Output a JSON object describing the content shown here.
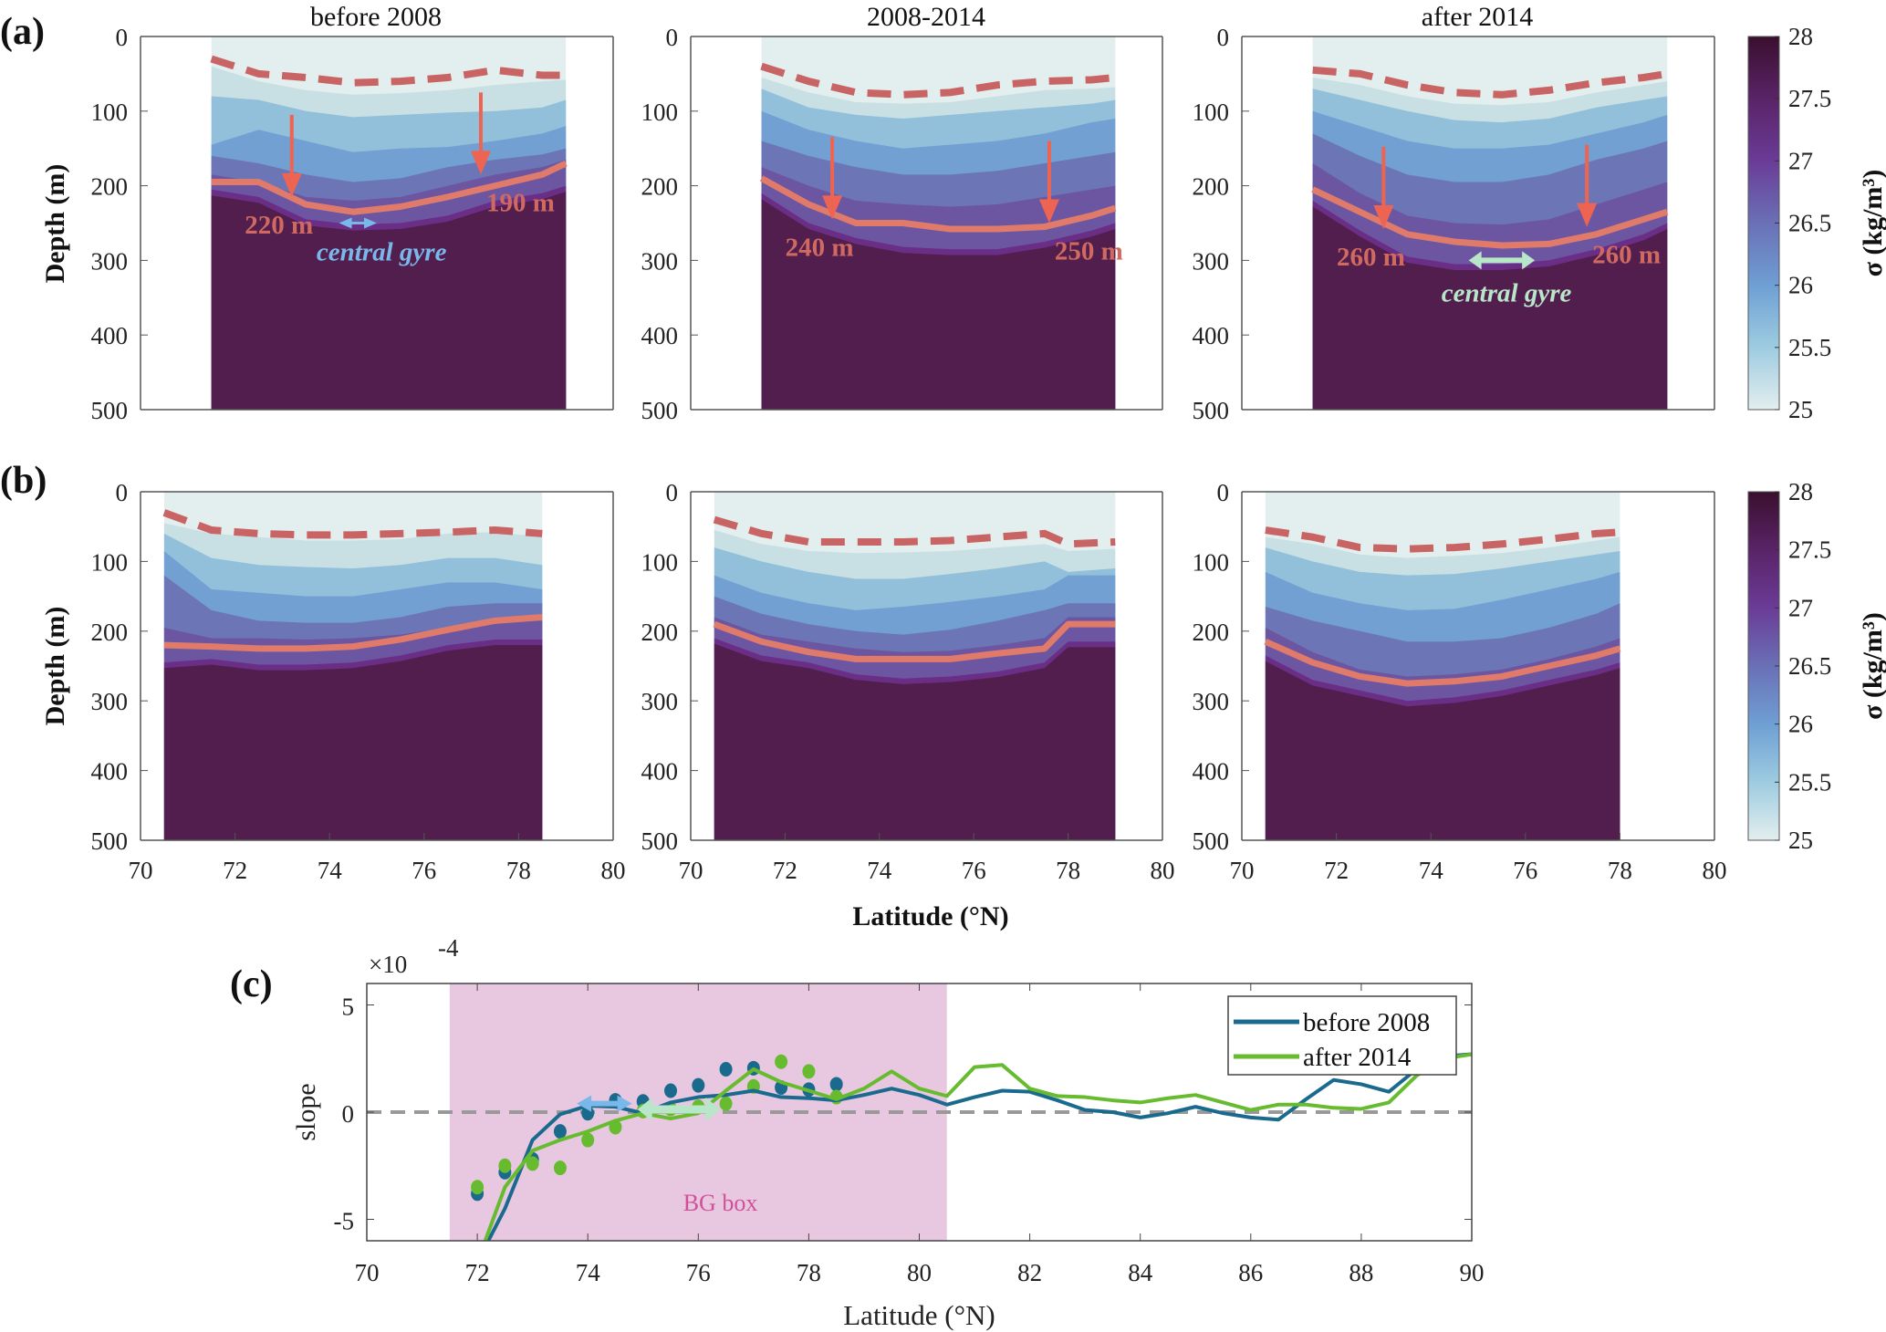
{
  "colors": {
    "layers": [
      "#e3eeee",
      "#c8e0e4",
      "#92c0db",
      "#72a0d2",
      "#6c76b6",
      "#6c56a2",
      "#6a2e86",
      "#521e4d"
    ],
    "mixed_layer_line": "#c86464",
    "isopycnal_line": "#e07a6a",
    "arrow": "#ee6452",
    "gyre_arrow_a1": "#7ab8ea",
    "gyre_arrow_a3": "#b8e6c8",
    "bg_box": "#e8c8e0",
    "bg_box_text": "#d2509a",
    "before_2008": "#1a6a8e",
    "after_2014": "#66bb2e",
    "zero_line": "#999999"
  },
  "panel_labels": {
    "a": "(a)",
    "b": "(b)",
    "c": "(c)"
  },
  "column_titles": [
    "before 2008",
    "2008-2014",
    "after 2014"
  ],
  "depth_axis": {
    "label": "Depth (m)",
    "ticks": [
      "0",
      "100",
      "200",
      "300",
      "400",
      "500"
    ],
    "range": [
      0,
      500
    ]
  },
  "lat_axis": {
    "label": "Latitude (°N)",
    "ticks": [
      "70",
      "72",
      "74",
      "76",
      "78",
      "80"
    ],
    "range": [
      70,
      80
    ]
  },
  "colorbar": {
    "label": "σ (kg/m³)",
    "ticks": [
      "25",
      "25.5",
      "26",
      "26.5",
      "27",
      "27.5",
      "28"
    ],
    "range": [
      25,
      28
    ]
  },
  "chart_data": [
    {
      "type": "area",
      "id": "a1",
      "title": "before 2008",
      "ylabel": "Depth (m)",
      "lat": [
        71.5,
        72.5,
        73.5,
        74.5,
        75.5,
        76.5,
        77.5,
        78.5,
        79
      ],
      "contour_depths": [
        [
          40,
          60,
          72,
          78,
          76,
          72,
          65,
          60,
          58
        ],
        [
          80,
          85,
          100,
          108,
          105,
          102,
          100,
          95,
          85
        ],
        [
          145,
          125,
          140,
          155,
          150,
          148,
          140,
          130,
          120
        ],
        [
          160,
          170,
          185,
          195,
          190,
          175,
          165,
          158,
          150
        ],
        [
          185,
          195,
          215,
          220,
          215,
          200,
          185,
          175,
          165
        ],
        [
          205,
          215,
          245,
          252,
          250,
          240,
          220,
          210,
          200
        ]
      ],
      "isopycnal_depth": [
        195,
        195,
        225,
        235,
        228,
        215,
        200,
        185,
        170
      ],
      "mixed_layer_depth": [
        30,
        50,
        55,
        62,
        60,
        55,
        45,
        52,
        52
      ],
      "annotations": [
        {
          "text": "220 m",
          "lat": 73.2,
          "depth": 215
        },
        {
          "text": "190 m",
          "lat": 77.2,
          "depth": 185
        }
      ],
      "gyre": {
        "text": "central gyre",
        "lat": [
          74.2,
          75.0
        ]
      }
    },
    {
      "type": "area",
      "id": "a2",
      "title": "2008-2014",
      "lat": [
        71.5,
        72.5,
        73.5,
        74.5,
        75.5,
        76.5,
        77.5,
        78.5,
        79
      ],
      "contour_depths": [
        [
          55,
          75,
          88,
          90,
          88,
          80,
          72,
          70,
          68
        ],
        [
          70,
          95,
          105,
          110,
          105,
          100,
          95,
          90,
          85
        ],
        [
          100,
          125,
          140,
          150,
          145,
          140,
          130,
          115,
          110
        ],
        [
          140,
          160,
          175,
          185,
          185,
          180,
          170,
          160,
          155
        ],
        [
          175,
          200,
          220,
          225,
          228,
          225,
          215,
          205,
          200
        ],
        [
          210,
          250,
          270,
          282,
          285,
          285,
          275,
          260,
          250
        ]
      ],
      "isopycnal_depth": [
        190,
        225,
        250,
        250,
        258,
        258,
        255,
        240,
        230
      ],
      "mixed_layer_depth": [
        40,
        60,
        75,
        78,
        75,
        65,
        60,
        58,
        55
      ],
      "annotations": [
        {
          "text": "240 m",
          "lat": 73.0,
          "depth": 245
        },
        {
          "text": "250 m",
          "lat": 77.6,
          "depth": 250
        }
      ]
    },
    {
      "type": "area",
      "id": "a3",
      "title": "after 2014",
      "lat": [
        71.5,
        72.5,
        73.5,
        74.5,
        75.5,
        76.5,
        77.5,
        78.5,
        79
      ],
      "contour_depths": [
        [
          55,
          65,
          80,
          90,
          92,
          88,
          75,
          65,
          60
        ],
        [
          70,
          85,
          100,
          112,
          115,
          110,
          95,
          85,
          80
        ],
        [
          100,
          120,
          140,
          150,
          150,
          145,
          130,
          115,
          105
        ],
        [
          130,
          160,
          185,
          195,
          195,
          185,
          165,
          150,
          140
        ],
        [
          170,
          210,
          240,
          250,
          252,
          245,
          225,
          205,
          195
        ],
        [
          220,
          260,
          295,
          305,
          305,
          300,
          285,
          265,
          250
        ]
      ],
      "isopycnal_depth": [
        205,
        235,
        265,
        275,
        280,
        278,
        265,
        245,
        235
      ],
      "mixed_layer_depth": [
        45,
        50,
        65,
        75,
        78,
        72,
        62,
        55,
        50
      ],
      "annotations": [
        {
          "text": "260 m",
          "lat": 73.0,
          "depth": 258
        },
        {
          "text": "260 m",
          "lat": 77.3,
          "depth": 255
        }
      ],
      "gyre": {
        "text": "central gyre",
        "lat": [
          74.8,
          76.2
        ]
      }
    },
    {
      "type": "area",
      "id": "b1",
      "xlabel": "",
      "ylabel": "Depth (m)",
      "lat": [
        70.5,
        71.5,
        72.5,
        73.5,
        74.5,
        75.5,
        76.5,
        77.5,
        78.5
      ],
      "contour_depths": [
        [
          45,
          60,
          65,
          70,
          70,
          68,
          60,
          58,
          65
        ],
        [
          60,
          95,
          105,
          108,
          110,
          105,
          95,
          95,
          105
        ],
        [
          85,
          140,
          145,
          150,
          150,
          140,
          130,
          130,
          140
        ],
        [
          120,
          170,
          185,
          188,
          188,
          180,
          165,
          160,
          160
        ],
        [
          195,
          210,
          210,
          212,
          210,
          205,
          195,
          185,
          185
        ],
        [
          245,
          240,
          248,
          248,
          245,
          235,
          220,
          212,
          212
        ]
      ],
      "isopycnal_depth": [
        220,
        222,
        225,
        225,
        222,
        212,
        198,
        185,
        180
      ],
      "mixed_layer_depth": [
        30,
        55,
        60,
        62,
        62,
        60,
        58,
        55,
        60
      ]
    },
    {
      "type": "area",
      "id": "b2",
      "lat": [
        70.5,
        71.5,
        72.5,
        73.5,
        74.5,
        75.5,
        76.5,
        77.5,
        78,
        79
      ],
      "contour_depths": [
        [
          55,
          75,
          85,
          88,
          87,
          85,
          80,
          75,
          85,
          82
        ],
        [
          80,
          100,
          115,
          125,
          125,
          118,
          110,
          100,
          115,
          110
        ],
        [
          120,
          145,
          160,
          170,
          165,
          158,
          150,
          140,
          120,
          120
        ],
        [
          150,
          175,
          190,
          200,
          205,
          198,
          185,
          170,
          160,
          160
        ],
        [
          180,
          205,
          215,
          225,
          230,
          228,
          220,
          210,
          180,
          180
        ],
        [
          210,
          235,
          245,
          262,
          268,
          265,
          258,
          245,
          215,
          215
        ]
      ],
      "isopycnal_depth": [
        190,
        215,
        230,
        240,
        240,
        240,
        232,
        225,
        190,
        190
      ],
      "mixed_layer_depth": [
        40,
        60,
        72,
        72,
        72,
        70,
        65,
        60,
        75,
        72
      ]
    },
    {
      "type": "area",
      "id": "b3",
      "lat": [
        70.5,
        71.5,
        72.5,
        73.5,
        74.5,
        75.5,
        76.5,
        77.5,
        78
      ],
      "contour_depths": [
        [
          65,
          75,
          90,
          95,
          92,
          88,
          80,
          70,
          65
        ],
        [
          80,
          100,
          115,
          120,
          118,
          110,
          100,
          90,
          85
        ],
        [
          115,
          145,
          160,
          170,
          168,
          155,
          140,
          125,
          115
        ],
        [
          165,
          185,
          200,
          215,
          215,
          210,
          195,
          175,
          160
        ],
        [
          195,
          230,
          255,
          265,
          262,
          255,
          240,
          222,
          210
        ],
        [
          235,
          270,
          285,
          300,
          295,
          285,
          270,
          255,
          245
        ]
      ],
      "isopycnal_depth": [
        215,
        245,
        265,
        275,
        272,
        265,
        250,
        235,
        225
      ],
      "mixed_layer_depth": [
        55,
        65,
        80,
        82,
        80,
        75,
        68,
        60,
        58
      ]
    },
    {
      "type": "line",
      "id": "c",
      "xlabel": "Latitude (°N)",
      "ylabel": "slope",
      "y_multiplier": "×10",
      "y_exponent": "-4",
      "xlim": [
        70,
        90
      ],
      "ylim": [
        -6,
        6
      ],
      "xticks": [
        "70",
        "72",
        "74",
        "76",
        "78",
        "80",
        "82",
        "84",
        "86",
        "88",
        "90"
      ],
      "yticks": [
        "5",
        "0",
        "-5"
      ],
      "bg_box": {
        "label": "BG box",
        "lat": [
          71.5,
          80.5
        ]
      },
      "legend": "top-right",
      "x": [
        72,
        72.5,
        73,
        73.5,
        74,
        74.5,
        75,
        75.5,
        76,
        76.5,
        77,
        77.5,
        78,
        78.5,
        79,
        79.5,
        80,
        80.5,
        81,
        81.5,
        82,
        82.5,
        83,
        83.5,
        84,
        84.5,
        85,
        85.5,
        86,
        86.5,
        87,
        87.5,
        88,
        88.5,
        89,
        89.5,
        90
      ],
      "series": [
        {
          "name": "before 2008",
          "values": [
            -7,
            -4.5,
            -1.3,
            -0.1,
            0.3,
            0.25,
            -0.05,
            0.45,
            0.7,
            0.8,
            1.0,
            0.7,
            0.65,
            0.55,
            0.8,
            1.1,
            0.8,
            0.35,
            0.7,
            1.0,
            0.95,
            0.55,
            0.1,
            0.0,
            -0.25,
            -0.05,
            0.25,
            -0.05,
            -0.25,
            -0.35,
            0.6,
            1.5,
            1.3,
            0.95,
            2.0,
            2.6,
            2.7
          ],
          "dots_x": [
            72,
            72.5,
            73,
            73.5,
            74,
            74.5,
            75,
            75.5,
            76,
            76.5,
            77,
            77.5,
            78,
            78.5
          ],
          "dots": [
            -3.8,
            -2.8,
            -2.2,
            -0.9,
            -0.05,
            0.55,
            0.5,
            1.0,
            1.25,
            2.0,
            2.05,
            1.15,
            1.05,
            1.3
          ]
        },
        {
          "name": "after 2014",
          "values": [
            -7,
            -3.5,
            -1.8,
            -1.3,
            -0.9,
            -0.4,
            -0.05,
            -0.3,
            -0.05,
            1.0,
            2.0,
            1.4,
            1.0,
            0.6,
            1.1,
            1.9,
            1.1,
            0.75,
            2.1,
            2.2,
            1.1,
            0.75,
            0.7,
            0.55,
            0.45,
            0.65,
            0.8,
            0.45,
            0.1,
            0.35,
            0.35,
            0.2,
            0.15,
            0.45,
            1.7,
            2.5,
            2.7
          ],
          "dots_x": [
            72,
            72.5,
            73,
            73.5,
            74,
            74.5,
            75,
            75.5,
            76,
            76.5,
            77,
            77.5,
            78,
            78.5
          ],
          "dots": [
            -3.5,
            -2.5,
            -2.4,
            -2.6,
            -1.3,
            -0.7,
            0.05,
            0.15,
            0.25,
            0.4,
            1.2,
            2.35,
            1.9,
            0.7
          ]
        }
      ],
      "gyre_arrows": [
        {
          "series": "before 2008",
          "lat": [
            73.8,
            74.8
          ],
          "value": 0.4
        },
        {
          "series": "after 2014",
          "lat": [
            74.9,
            76.4
          ],
          "value": -0.3
        }
      ]
    }
  ]
}
